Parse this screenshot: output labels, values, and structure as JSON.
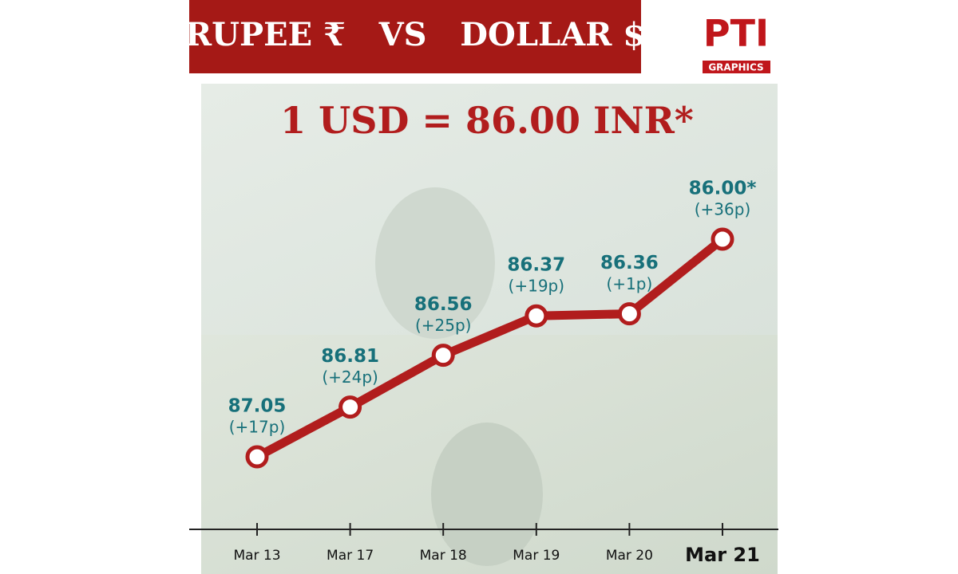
{
  "chart_data": {
    "type": "line",
    "title": "RUPEE ₹   VS   DOLLAR $",
    "subtitle": "1 USD = 86.00 INR*",
    "logo": "PTI",
    "logo_caption": "GRAPHICS",
    "categories": [
      "Mar 13",
      "Mar 17",
      "Mar 18",
      "Mar 19",
      "Mar 20",
      "Mar 21"
    ],
    "values": [
      87.05,
      86.81,
      86.56,
      86.37,
      86.36,
      86.0
    ],
    "value_labels": [
      "87.05",
      "86.81",
      "86.56",
      "86.37",
      "86.36",
      "86.00*"
    ],
    "changes": [
      "(+17p)",
      "(+24p)",
      "(+25p)",
      "(+19p)",
      "(+1p)",
      "(+36p)"
    ],
    "color": "#b11d1d",
    "label_color": "#17707a",
    "ylim": [
      87.4,
      85.8
    ]
  }
}
